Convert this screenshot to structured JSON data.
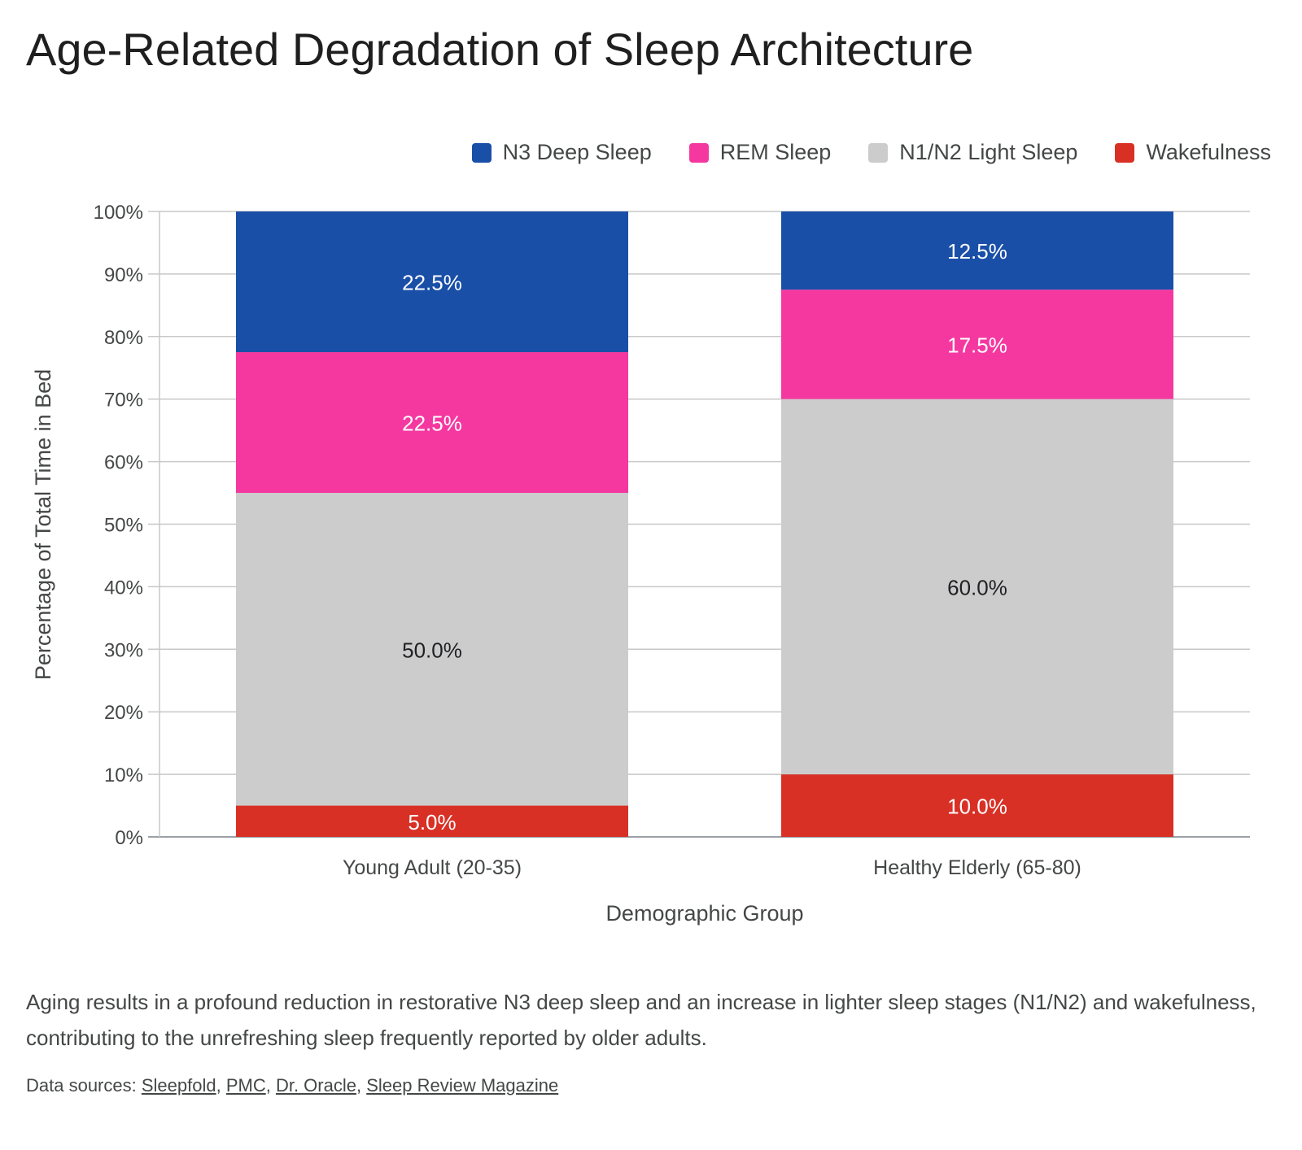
{
  "title": "Age-Related Degradation of Sleep Architecture",
  "caption": "Aging results in a profound reduction in restorative N3 deep sleep and an increase in lighter sleep stages (N1/N2) and wakefulness, contributing to the unrefreshing sleep frequently reported by older adults.",
  "sources": {
    "prefix": "Data sources: ",
    "links": [
      "Sleepfold",
      "PMC",
      "Dr. Oracle",
      "Sleep Review Magazine"
    ]
  },
  "chart_data": {
    "type": "bar",
    "stacked": true,
    "categories": [
      "Young Adult (20-35)",
      "Healthy Elderly (65-80)"
    ],
    "series": [
      {
        "name": "Wakefulness",
        "values": [
          5.0,
          10.0
        ],
        "color": "#d93025",
        "label_color": "#ffffff"
      },
      {
        "name": "N1/N2 Light Sleep",
        "values": [
          50.0,
          60.0
        ],
        "color": "#cccccc",
        "label_color": "#202124"
      },
      {
        "name": "REM Sleep",
        "values": [
          22.5,
          17.5
        ],
        "color": "#f538a0",
        "label_color": "#ffffff"
      },
      {
        "name": "N3 Deep Sleep",
        "values": [
          22.5,
          12.5
        ],
        "color": "#1a4fa8",
        "label_color": "#ffffff"
      }
    ],
    "legend_order": [
      "N3 Deep Sleep",
      "REM Sleep",
      "N1/N2 Light Sleep",
      "Wakefulness"
    ],
    "legend_position": "top-right",
    "xlabel": "Demographic Group",
    "ylabel": "Percentage of Total Time in Bed",
    "ylim": [
      0,
      100
    ],
    "yticks": [
      "0%",
      "10%",
      "20%",
      "30%",
      "40%",
      "50%",
      "60%",
      "70%",
      "80%",
      "90%",
      "100%"
    ],
    "grid": true
  }
}
